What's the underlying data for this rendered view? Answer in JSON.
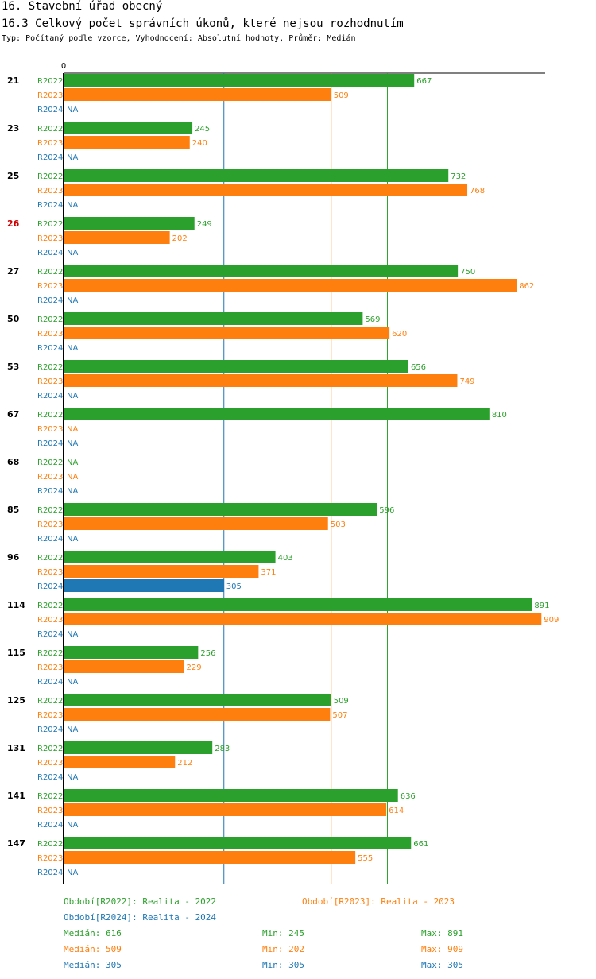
{
  "header": {
    "title1": "16. Stavební úřad obecný",
    "title2": "16.3 Celkový počet správních úkonů, které nejsou rozhodnutím",
    "subtitle": "Typ: Počítaný podle vzorce, Vyhodnocení: Absolutní hodnoty, Průměr: Medián"
  },
  "colors": {
    "R2022": "#2ca02c",
    "R2023": "#ff7f0e",
    "R2024": "#1f77b4",
    "highlight": "#cc0000"
  },
  "chart_data": {
    "type": "bar",
    "orientation": "horizontal",
    "axis_zero_label": "0",
    "na_label": "NA",
    "series_names": [
      "R2022",
      "R2023",
      "R2024"
    ],
    "highlight_category": "26",
    "xlim": [
      0,
      909
    ],
    "categories": [
      "21",
      "23",
      "25",
      "26",
      "27",
      "50",
      "53",
      "67",
      "68",
      "85",
      "96",
      "114",
      "115",
      "125",
      "131",
      "141",
      "147"
    ],
    "series": [
      {
        "name": "R2022",
        "values": [
          667,
          245,
          732,
          249,
          750,
          569,
          656,
          810,
          null,
          596,
          403,
          891,
          256,
          509,
          283,
          636,
          661
        ]
      },
      {
        "name": "R2023",
        "values": [
          509,
          240,
          768,
          202,
          862,
          620,
          749,
          null,
          null,
          503,
          371,
          909,
          229,
          507,
          212,
          614,
          555
        ]
      },
      {
        "name": "R2024",
        "values": [
          null,
          null,
          null,
          null,
          null,
          null,
          null,
          null,
          null,
          null,
          305,
          null,
          null,
          null,
          null,
          null,
          null
        ]
      }
    ],
    "reference_lines": [
      {
        "series": "R2022",
        "stat": "Medián",
        "value": 616
      },
      {
        "series": "R2023",
        "stat": "Medián",
        "value": 509
      },
      {
        "series": "R2024",
        "stat": "Medián",
        "value": 305
      }
    ]
  },
  "legend": {
    "r2022": "Období[R2022]: Realita - 2022",
    "r2023": "Období[R2023]: Realita - 2023",
    "r2024": "Období[R2024]: Realita - 2024"
  },
  "stats": {
    "r2022": {
      "median": "Medián: 616",
      "min": "Min: 245",
      "max": "Max: 891"
    },
    "r2023": {
      "median": "Medián: 509",
      "min": "Min: 202",
      "max": "Max: 909"
    },
    "r2024": {
      "median": "Medián: 305",
      "min": "Min: 305",
      "max": "Max: 305"
    }
  }
}
